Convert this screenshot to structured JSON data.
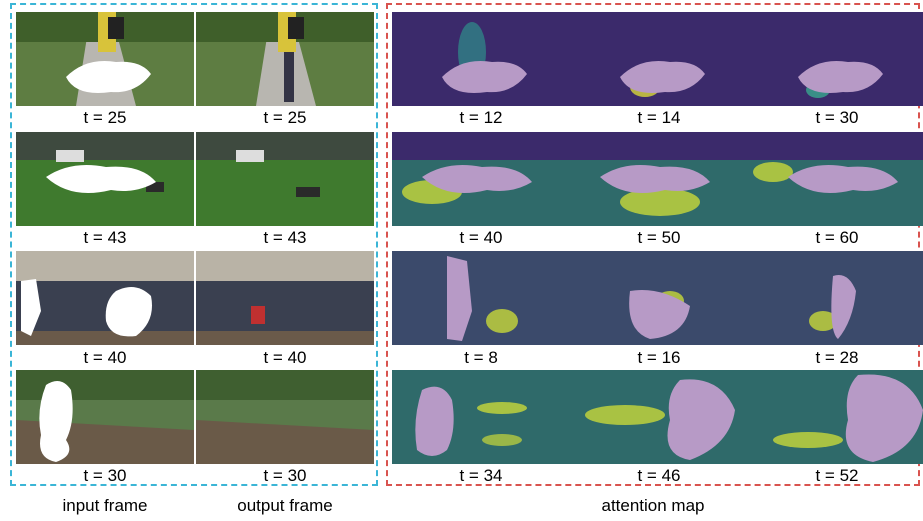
{
  "panels": {
    "left_caption_1": "input frame",
    "left_caption_2": "output frame",
    "right_caption": "attention map"
  },
  "rows": [
    {
      "input": "t = 25",
      "output": "t = 25",
      "attention": [
        "t = 12",
        "t = 14",
        "t = 30"
      ]
    },
    {
      "input": "t = 43",
      "output": "t = 43",
      "attention": [
        "t = 40",
        "t = 50",
        "t = 60"
      ]
    },
    {
      "input": "t = 40",
      "output": "t = 40",
      "attention": [
        "t = 8",
        "t = 16",
        "t = 28"
      ]
    },
    {
      "input": "t = 30",
      "output": "t = 30",
      "attention": [
        "t = 34",
        "t = 46",
        "t = 52"
      ]
    }
  ],
  "colors": {
    "left_border": "#3bb5d6",
    "right_border": "#d9534f",
    "attention_base": "#3b2a6b",
    "attention_hot": "#e6e63a",
    "mask": "#ffffff"
  }
}
